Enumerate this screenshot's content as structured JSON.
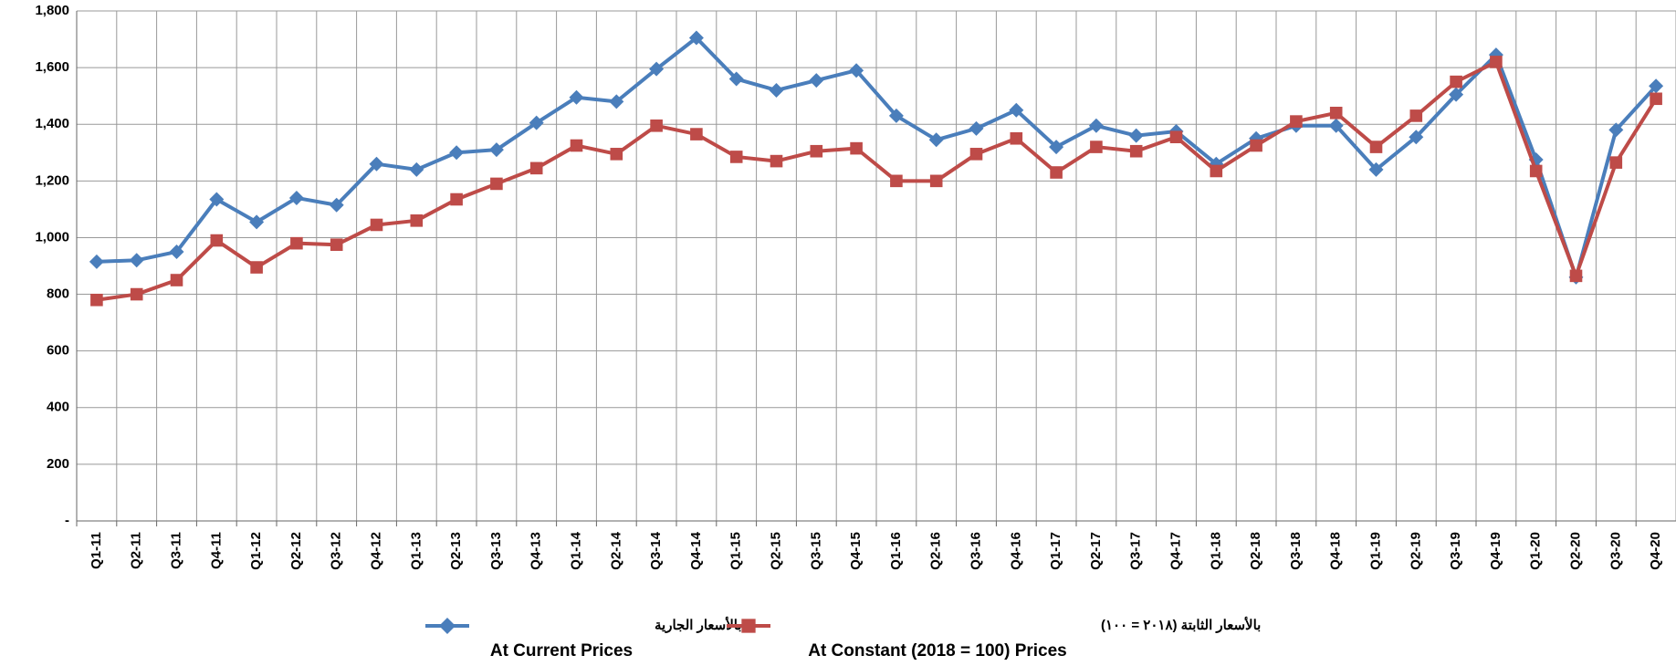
{
  "chart_data": {
    "type": "line",
    "categories": [
      "Q1-11",
      "Q2-11",
      "Q3-11",
      "Q4-11",
      "Q1-12",
      "Q2-12",
      "Q3-12",
      "Q4-12",
      "Q1-13",
      "Q2-13",
      "Q3-13",
      "Q4-13",
      "Q1-14",
      "Q2-14",
      "Q3-14",
      "Q4-14",
      "Q1-15",
      "Q2-15",
      "Q3-15",
      "Q4-15",
      "Q1-16",
      "Q2-16",
      "Q3-16",
      "Q4-16",
      "Q1-17",
      "Q2-17",
      "Q3-17",
      "Q4-17",
      "Q1-18",
      "Q2-18",
      "Q3-18",
      "Q4-18",
      "Q1-19",
      "Q2-19",
      "Q3-19",
      "Q4-19",
      "Q1-20",
      "Q2-20",
      "Q3-20",
      "Q4-20"
    ],
    "series": [
      {
        "name": "At Current Prices",
        "name_ar": "بالأسعار الجارية",
        "color": "#4a7ebb",
        "marker": "diamond",
        "values": [
          915,
          920,
          950,
          1135,
          1055,
          1140,
          1115,
          1260,
          1240,
          1300,
          1310,
          1405,
          1495,
          1480,
          1595,
          1705,
          1560,
          1520,
          1555,
          1590,
          1430,
          1345,
          1385,
          1450,
          1320,
          1395,
          1360,
          1375,
          1260,
          1350,
          1395,
          1395,
          1240,
          1355,
          1505,
          1645,
          1275,
          860,
          1380,
          1535
        ]
      },
      {
        "name": "At Constant (2018 = 100) Prices",
        "name_ar": "بالأسعار الثابتة (٢٠١٨ = ١٠٠)",
        "color": "#be4b48",
        "marker": "square",
        "values": [
          780,
          800,
          850,
          990,
          895,
          980,
          975,
          1045,
          1060,
          1135,
          1190,
          1245,
          1325,
          1295,
          1395,
          1365,
          1285,
          1270,
          1305,
          1315,
          1200,
          1200,
          1295,
          1350,
          1230,
          1320,
          1305,
          1355,
          1235,
          1325,
          1410,
          1440,
          1320,
          1430,
          1550,
          1620,
          1235,
          865,
          1265,
          1490
        ]
      }
    ],
    "ylim": [
      0,
      1800
    ],
    "yticks": [
      {
        "value": 0,
        "label": "-"
      },
      {
        "value": 200,
        "label": "200"
      },
      {
        "value": 400,
        "label": "400"
      },
      {
        "value": 600,
        "label": "600"
      },
      {
        "value": 800,
        "label": "800"
      },
      {
        "value": 1000,
        "label": "1,000"
      },
      {
        "value": 1200,
        "label": "1,200"
      },
      {
        "value": 1400,
        "label": "1,400"
      },
      {
        "value": 1600,
        "label": "1,600"
      },
      {
        "value": 1800,
        "label": "1,800"
      }
    ],
    "grid": true
  }
}
